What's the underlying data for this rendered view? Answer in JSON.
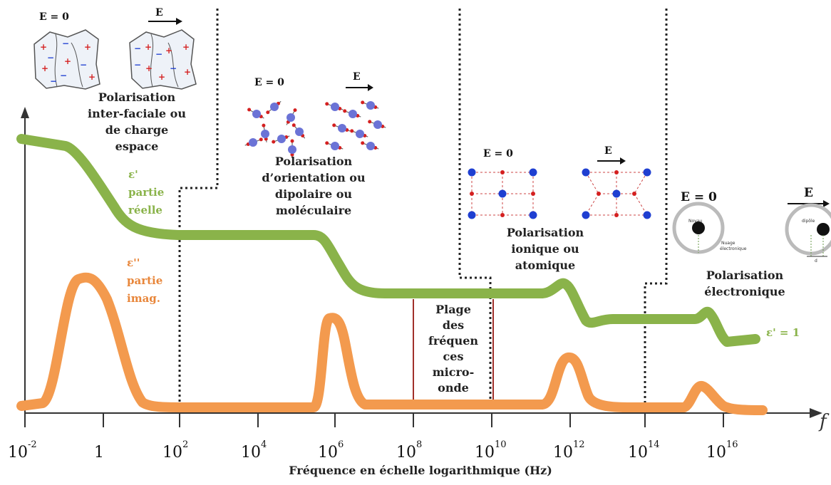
{
  "e_zero": "E = 0",
  "e_field": "E",
  "region_interfacial": [
    "Polarisation",
    "inter-faciale ou",
    "de charge",
    "espace"
  ],
  "region_orientation": [
    "Polarisation",
    "d’orientation ou",
    "dipolaire ou",
    "moléculaire"
  ],
  "region_ionic": [
    "Polarisation",
    "ionique ou",
    "atomique"
  ],
  "region_electronic": [
    "Polarisation",
    "électronique"
  ],
  "microwave_band": [
    "Plage",
    "des",
    "fréquen",
    "ces",
    "micro-",
    "onde"
  ],
  "real_part_label": [
    "ε'",
    "partie",
    "réelle"
  ],
  "imag_part_label": [
    "ε''",
    "partie",
    "imag."
  ],
  "eps_one": "ε' = 1",
  "atom_labels": {
    "nucleus": "Noyau",
    "cloud": [
      "Nuage",
      "électronique"
    ],
    "dipole": "dipôle",
    "d": "d"
  },
  "x_axis_title": "Fréquence en échelle logarithmique (Hz)",
  "axis_f": "f",
  "x_ticks": [
    {
      "base": "10",
      "sup": "-2"
    },
    {
      "base": "1",
      "sup": ""
    },
    {
      "base": "10",
      "sup": "2"
    },
    {
      "base": "10",
      "sup": "4"
    },
    {
      "base": "10",
      "sup": "6"
    },
    {
      "base": "10",
      "sup": "8"
    },
    {
      "base": "10",
      "sup": "10"
    },
    {
      "base": "10",
      "sup": "12"
    },
    {
      "base": "10",
      "sup": "14"
    },
    {
      "base": "10",
      "sup": "16"
    }
  ],
  "colors": {
    "real": "#8ab34a",
    "imag": "#f39a4e",
    "microwave_lines": "#a0302a",
    "dots_blue": "#1f3fd1",
    "dots_red": "#d42020"
  }
}
